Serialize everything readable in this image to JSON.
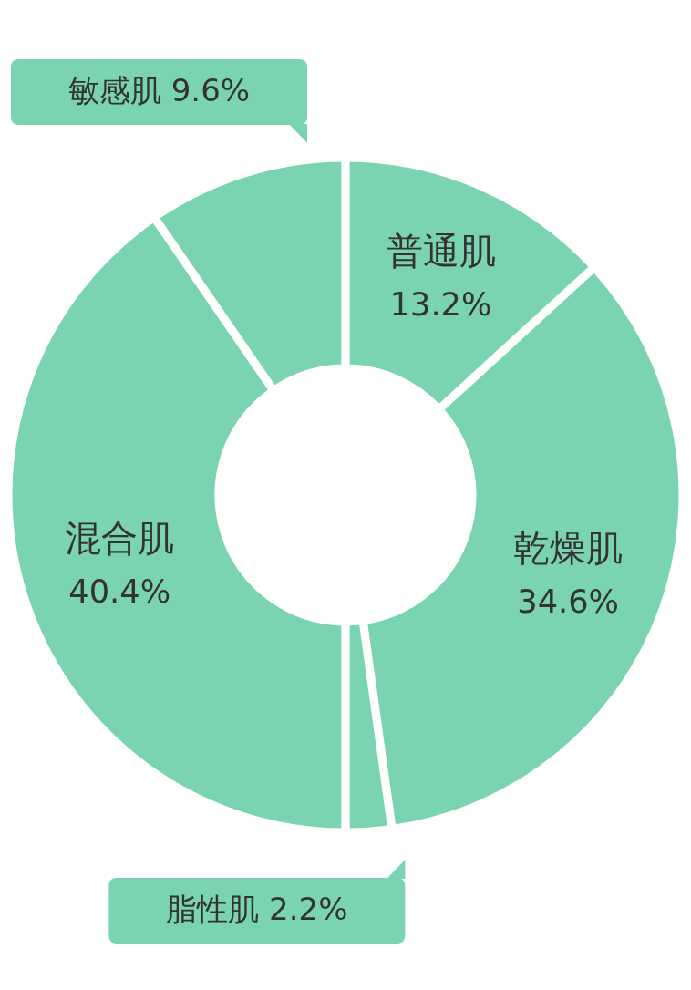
{
  "chart_data": {
    "type": "donut",
    "categories": [
      "普通肌",
      "乾燥肌",
      "脂性肌",
      "混合肌",
      "敏感肌"
    ],
    "values": [
      13.2,
      34.6,
      2.2,
      40.4,
      9.6
    ],
    "colors": [
      "#7ad4b2",
      "#7ad4b2",
      "#7ad4b2",
      "#7ad4b2",
      "#7ad4b2"
    ],
    "value_labels": [
      "13.2%",
      "34.6%",
      "2.2%",
      "40.4%",
      "9.6%"
    ]
  }
}
